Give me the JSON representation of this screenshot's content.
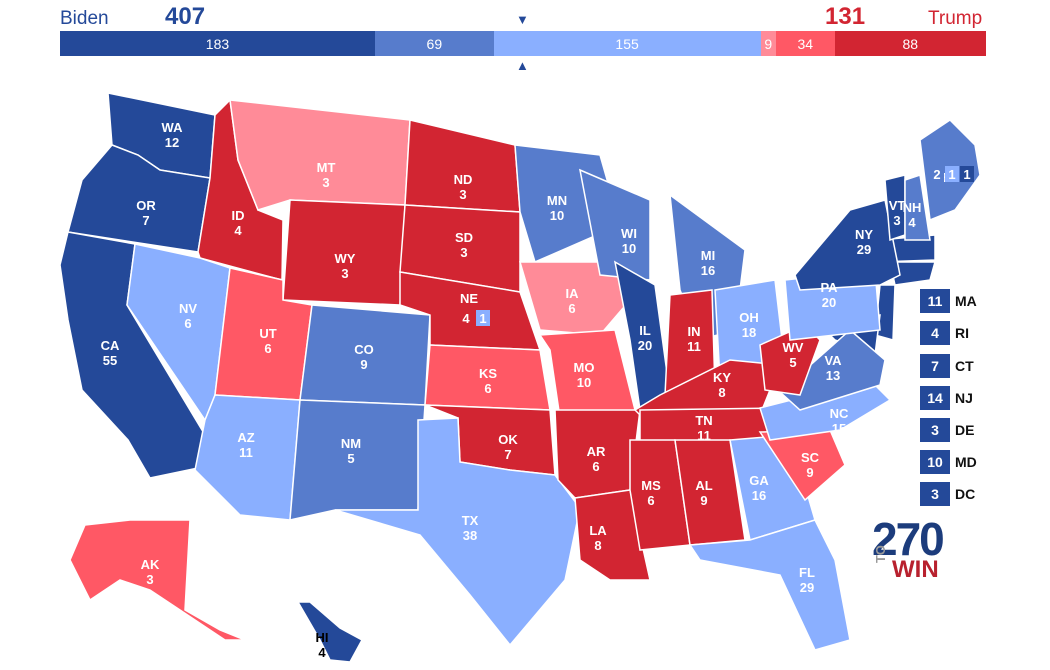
{
  "header": {
    "biden_label": "Biden",
    "biden_votes": "407",
    "trump_label": "Trump",
    "trump_votes": "131",
    "segments": [
      {
        "value": 183,
        "label": "183",
        "color": "#244999"
      },
      {
        "value": 69,
        "label": "69",
        "color": "#577ccc"
      },
      {
        "value": 155,
        "label": "155",
        "color": "#8aafff"
      },
      {
        "value": 9,
        "label": "9",
        "color": "#ff8b98"
      },
      {
        "value": 34,
        "label": "34",
        "color": "#ff5865"
      },
      {
        "value": 88,
        "label": "88",
        "color": "#d22532"
      }
    ]
  },
  "colors": {
    "safe_d": "#244999",
    "likely_d": "#577ccc",
    "lean_d": "#8aafff",
    "lean_r": "#ff8b98",
    "likely_r": "#ff5865",
    "safe_r": "#d22532"
  },
  "states": [
    {
      "abbr": "WA",
      "ev": "12",
      "rating": "safe_d"
    },
    {
      "abbr": "OR",
      "ev": "7",
      "rating": "safe_d"
    },
    {
      "abbr": "CA",
      "ev": "55",
      "rating": "safe_d"
    },
    {
      "abbr": "ID",
      "ev": "4",
      "rating": "safe_r"
    },
    {
      "abbr": "NV",
      "ev": "6",
      "rating": "lean_d"
    },
    {
      "abbr": "MT",
      "ev": "3",
      "rating": "lean_r"
    },
    {
      "abbr": "WY",
      "ev": "3",
      "rating": "safe_r"
    },
    {
      "abbr": "UT",
      "ev": "6",
      "rating": "likely_r"
    },
    {
      "abbr": "AZ",
      "ev": "11",
      "rating": "lean_d"
    },
    {
      "abbr": "CO",
      "ev": "9",
      "rating": "likely_d"
    },
    {
      "abbr": "NM",
      "ev": "5",
      "rating": "likely_d"
    },
    {
      "abbr": "ND",
      "ev": "3",
      "rating": "safe_r"
    },
    {
      "abbr": "SD",
      "ev": "3",
      "rating": "safe_r"
    },
    {
      "abbr": "NE",
      "ev": "4",
      "rating": "safe_r"
    },
    {
      "abbr": "KS",
      "ev": "6",
      "rating": "likely_r"
    },
    {
      "abbr": "OK",
      "ev": "7",
      "rating": "safe_r"
    },
    {
      "abbr": "TX",
      "ev": "38",
      "rating": "lean_d"
    },
    {
      "abbr": "MN",
      "ev": "10",
      "rating": "likely_d"
    },
    {
      "abbr": "IA",
      "ev": "6",
      "rating": "lean_r"
    },
    {
      "abbr": "MO",
      "ev": "10",
      "rating": "likely_r"
    },
    {
      "abbr": "AR",
      "ev": "6",
      "rating": "safe_r"
    },
    {
      "abbr": "LA",
      "ev": "8",
      "rating": "safe_r"
    },
    {
      "abbr": "WI",
      "ev": "10",
      "rating": "likely_d"
    },
    {
      "abbr": "IL",
      "ev": "20",
      "rating": "safe_d"
    },
    {
      "abbr": "MI",
      "ev": "16",
      "rating": "likely_d"
    },
    {
      "abbr": "IN",
      "ev": "11",
      "rating": "safe_r"
    },
    {
      "abbr": "OH",
      "ev": "18",
      "rating": "lean_d"
    },
    {
      "abbr": "KY",
      "ev": "8",
      "rating": "safe_r"
    },
    {
      "abbr": "TN",
      "ev": "11",
      "rating": "safe_r"
    },
    {
      "abbr": "MS",
      "ev": "6",
      "rating": "safe_r"
    },
    {
      "abbr": "AL",
      "ev": "9",
      "rating": "safe_r"
    },
    {
      "abbr": "GA",
      "ev": "16",
      "rating": "lean_d"
    },
    {
      "abbr": "FL",
      "ev": "29",
      "rating": "lean_d"
    },
    {
      "abbr": "SC",
      "ev": "9",
      "rating": "likely_r"
    },
    {
      "abbr": "NC",
      "ev": "15",
      "rating": "lean_d"
    },
    {
      "abbr": "VA",
      "ev": "13",
      "rating": "likely_d"
    },
    {
      "abbr": "WV",
      "ev": "5",
      "rating": "safe_r"
    },
    {
      "abbr": "PA",
      "ev": "20",
      "rating": "lean_d"
    },
    {
      "abbr": "NY",
      "ev": "29",
      "rating": "safe_d"
    },
    {
      "abbr": "VT",
      "ev": "3",
      "rating": "safe_d"
    },
    {
      "abbr": "NH",
      "ev": "4",
      "rating": "likely_d"
    },
    {
      "abbr": "ME",
      "ev": "",
      "rating": "likely_d"
    },
    {
      "abbr": "AK",
      "ev": "3",
      "rating": "likely_r"
    },
    {
      "abbr": "HI",
      "ev": "4",
      "rating": "safe_d"
    }
  ],
  "split_votes": {
    "me": [
      "2",
      "1",
      "1"
    ],
    "ne": "1"
  },
  "legend": [
    {
      "votes": "11",
      "abbr": "MA"
    },
    {
      "votes": "4",
      "abbr": "RI"
    },
    {
      "votes": "7",
      "abbr": "CT"
    },
    {
      "votes": "14",
      "abbr": "NJ"
    },
    {
      "votes": "3",
      "abbr": "DE"
    },
    {
      "votes": "10",
      "abbr": "MD"
    },
    {
      "votes": "3",
      "abbr": "DC"
    }
  ],
  "logo": {
    "num": "270",
    "to": "TO",
    "win": "WIN"
  }
}
